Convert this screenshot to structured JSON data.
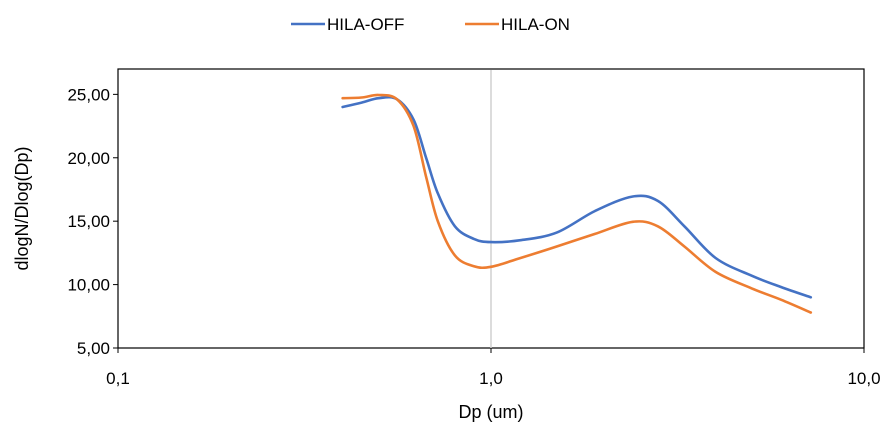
{
  "chart_data": {
    "type": "line",
    "title": "",
    "xlabel": "Dp (um)",
    "ylabel": "dlogN/Dlog(Dp)",
    "xscale": "log",
    "xlim": [
      0.1,
      10.0
    ],
    "ylim": [
      5.0,
      27.0
    ],
    "x_ticks": [
      {
        "value": 0.1,
        "label": "0,1"
      },
      {
        "value": 1.0,
        "label": "1,0"
      },
      {
        "value": 10.0,
        "label": "10,0"
      }
    ],
    "y_ticks": [
      {
        "value": 5,
        "label": "5,00"
      },
      {
        "value": 10,
        "label": "10,00"
      },
      {
        "value": 15,
        "label": "15,00"
      },
      {
        "value": 20,
        "label": "20,00"
      },
      {
        "value": 25,
        "label": "25,00"
      }
    ],
    "reference_line_x": 1.0,
    "grid": false,
    "legend_position": "top",
    "series": [
      {
        "name": "HILA-OFF",
        "color": "#4472C4",
        "points": [
          [
            0.4,
            24.0
          ],
          [
            0.45,
            24.35
          ],
          [
            0.5,
            24.7
          ],
          [
            0.56,
            24.6
          ],
          [
            0.62,
            23.0
          ],
          [
            0.67,
            20.0
          ],
          [
            0.72,
            17.2
          ],
          [
            0.8,
            14.6
          ],
          [
            0.9,
            13.6
          ],
          [
            1.0,
            13.35
          ],
          [
            1.2,
            13.5
          ],
          [
            1.5,
            14.1
          ],
          [
            1.9,
            15.8
          ],
          [
            2.4,
            16.95
          ],
          [
            2.8,
            16.6
          ],
          [
            3.3,
            14.6
          ],
          [
            4.0,
            12.1
          ],
          [
            5.0,
            10.7
          ],
          [
            6.0,
            9.8
          ],
          [
            7.2,
            9.0
          ]
        ]
      },
      {
        "name": "HILA-ON",
        "color": "#ED7D31",
        "points": [
          [
            0.4,
            24.7
          ],
          [
            0.45,
            24.75
          ],
          [
            0.5,
            24.95
          ],
          [
            0.56,
            24.6
          ],
          [
            0.62,
            22.5
          ],
          [
            0.67,
            18.5
          ],
          [
            0.72,
            15.0
          ],
          [
            0.8,
            12.3
          ],
          [
            0.9,
            11.45
          ],
          [
            1.0,
            11.4
          ],
          [
            1.2,
            12.1
          ],
          [
            1.5,
            13.0
          ],
          [
            1.9,
            14.0
          ],
          [
            2.4,
            14.95
          ],
          [
            2.8,
            14.6
          ],
          [
            3.3,
            13.0
          ],
          [
            4.0,
            11.0
          ],
          [
            5.0,
            9.7
          ],
          [
            6.0,
            8.8
          ],
          [
            7.2,
            7.8
          ]
        ]
      }
    ]
  }
}
